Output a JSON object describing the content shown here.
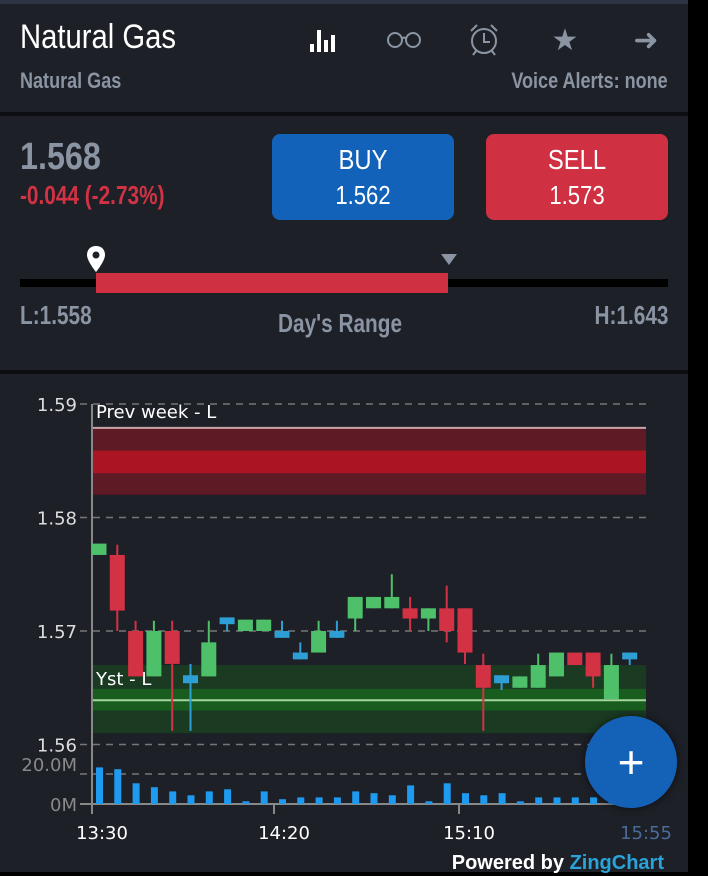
{
  "header": {
    "title": "Natural Gas",
    "subtitle": "Natural Gas",
    "voice_alerts": "Voice Alerts: none",
    "icons": [
      "bar-chart-icon",
      "glasses-icon",
      "alarm-clock-icon",
      "star-icon",
      "arrow-right-icon"
    ]
  },
  "quote": {
    "price": "1.568",
    "change": "-0.044 (-2.73%)",
    "buy": {
      "label": "BUY",
      "value": "1.562"
    },
    "sell": {
      "label": "SELL",
      "value": "1.573"
    }
  },
  "range": {
    "low": "L:1.558",
    "high": "H:1.643",
    "label": "Day's Range",
    "low_value": 1.558,
    "high_value": 1.643,
    "current": 1.568,
    "fill_fraction": [
      0.12,
      0.66
    ]
  },
  "colors": {
    "up": "#4fc06a",
    "down": "#d33245",
    "flat": "#2e9fd4",
    "volume": "#1e9bf0",
    "buy": "#1262b9",
    "sell": "#cf3042"
  },
  "chart_data": {
    "type": "candlestick",
    "ylim": [
      1.56,
      1.59
    ],
    "yticks": [
      "1.59",
      "1.58",
      "1.57",
      "1.56"
    ],
    "xticks": [
      "13:30",
      "14:20",
      "15:10",
      "15:55"
    ],
    "volume_ticks": [
      "20.0M",
      "0M"
    ],
    "volume_max": 20,
    "bands": [
      {
        "label": "Prev week - L",
        "line": 1.5879,
        "outer": [
          1.582,
          1.5879
        ],
        "inner": [
          1.5839,
          1.5859
        ],
        "outer_color": "#5e1a25",
        "inner_color": "#ab1422",
        "line_color": "#c9a3a8"
      },
      {
        "label": "Yst - L",
        "line": 1.5639,
        "outer": [
          1.561,
          1.567
        ],
        "inner": [
          1.563,
          1.5649
        ],
        "outer_color": "#1b3a22",
        "inner_color": "#185d1e",
        "line_color": "#a6d6a0"
      }
    ],
    "candles": [
      {
        "o": 1.5767,
        "c": 1.5777,
        "h": 1.5777,
        "l": 1.5767,
        "d": "up",
        "v": 12.2
      },
      {
        "o": 1.5767,
        "c": 1.5718,
        "h": 1.5776,
        "l": 1.57,
        "d": "down",
        "v": 11.6
      },
      {
        "o": 1.57,
        "c": 1.566,
        "h": 1.5709,
        "l": 1.566,
        "d": "down",
        "v": 6.9
      },
      {
        "o": 1.566,
        "c": 1.57,
        "h": 1.5709,
        "l": 1.566,
        "d": "up",
        "v": 5.6
      },
      {
        "o": 1.57,
        "c": 1.5671,
        "h": 1.5709,
        "l": 1.5612,
        "d": "down",
        "v": 4.2
      },
      {
        "o": 1.5661,
        "c": 1.5654,
        "h": 1.5671,
        "l": 1.5612,
        "d": "flat",
        "v": 2.9
      },
      {
        "o": 1.566,
        "c": 1.569,
        "h": 1.5709,
        "l": 1.566,
        "d": "up",
        "v": 4.2
      },
      {
        "o": 1.5712,
        "c": 1.5706,
        "h": 1.5712,
        "l": 1.57,
        "d": "flat",
        "v": 4.9
      },
      {
        "o": 1.57,
        "c": 1.571,
        "h": 1.571,
        "l": 1.57,
        "d": "up",
        "v": 0.9
      },
      {
        "o": 1.57,
        "c": 1.571,
        "h": 1.571,
        "l": 1.57,
        "d": "up",
        "v": 4.2
      },
      {
        "o": 1.57,
        "c": 1.5694,
        "h": 1.5709,
        "l": 1.5694,
        "d": "flat",
        "v": 1.6
      },
      {
        "o": 1.5681,
        "c": 1.5675,
        "h": 1.569,
        "l": 1.5675,
        "d": "flat",
        "v": 2.2
      },
      {
        "o": 1.5681,
        "c": 1.57,
        "h": 1.5709,
        "l": 1.5681,
        "d": "up",
        "v": 2.2
      },
      {
        "o": 1.57,
        "c": 1.5694,
        "h": 1.5709,
        "l": 1.5694,
        "d": "flat",
        "v": 2.2
      },
      {
        "o": 1.5711,
        "c": 1.573,
        "h": 1.573,
        "l": 1.57,
        "d": "up",
        "v": 4.2
      },
      {
        "o": 1.572,
        "c": 1.573,
        "h": 1.573,
        "l": 1.572,
        "d": "up",
        "v": 3.6
      },
      {
        "o": 1.572,
        "c": 1.573,
        "h": 1.575,
        "l": 1.572,
        "d": "up",
        "v": 2.9
      },
      {
        "o": 1.572,
        "c": 1.5711,
        "h": 1.573,
        "l": 1.57,
        "d": "down",
        "v": 6.2
      },
      {
        "o": 1.5711,
        "c": 1.572,
        "h": 1.572,
        "l": 1.57,
        "d": "up",
        "v": 0.9
      },
      {
        "o": 1.572,
        "c": 1.57,
        "h": 1.574,
        "l": 1.569,
        "d": "down",
        "v": 6.9
      },
      {
        "o": 1.572,
        "c": 1.5681,
        "h": 1.572,
        "l": 1.5671,
        "d": "down",
        "v": 3.6
      },
      {
        "o": 1.567,
        "c": 1.565,
        "h": 1.568,
        "l": 1.5612,
        "d": "down",
        "v": 2.9
      },
      {
        "o": 1.5661,
        "c": 1.5654,
        "h": 1.5661,
        "l": 1.5648,
        "d": "flat",
        "v": 3.6
      },
      {
        "o": 1.565,
        "c": 1.566,
        "h": 1.566,
        "l": 1.565,
        "d": "up",
        "v": 0.9
      },
      {
        "o": 1.565,
        "c": 1.567,
        "h": 1.568,
        "l": 1.565,
        "d": "up",
        "v": 2.2
      },
      {
        "o": 1.566,
        "c": 1.5681,
        "h": 1.5681,
        "l": 1.566,
        "d": "up",
        "v": 2.2
      },
      {
        "o": 1.5681,
        "c": 1.567,
        "h": 1.5681,
        "l": 1.567,
        "d": "down",
        "v": 2.2
      },
      {
        "o": 1.5681,
        "c": 1.566,
        "h": 1.5681,
        "l": 1.565,
        "d": "down",
        "v": 2.2
      },
      {
        "o": 1.564,
        "c": 1.567,
        "h": 1.568,
        "l": 1.564,
        "d": "up",
        "v": 0.9
      },
      {
        "o": 1.5681,
        "c": 1.5675,
        "h": 1.5681,
        "l": 1.567,
        "d": "flat",
        "v": 3.6
      }
    ]
  },
  "fab": {
    "label": "+"
  },
  "credit": {
    "prefix": "Powered by ",
    "brand": "ZingChart"
  }
}
